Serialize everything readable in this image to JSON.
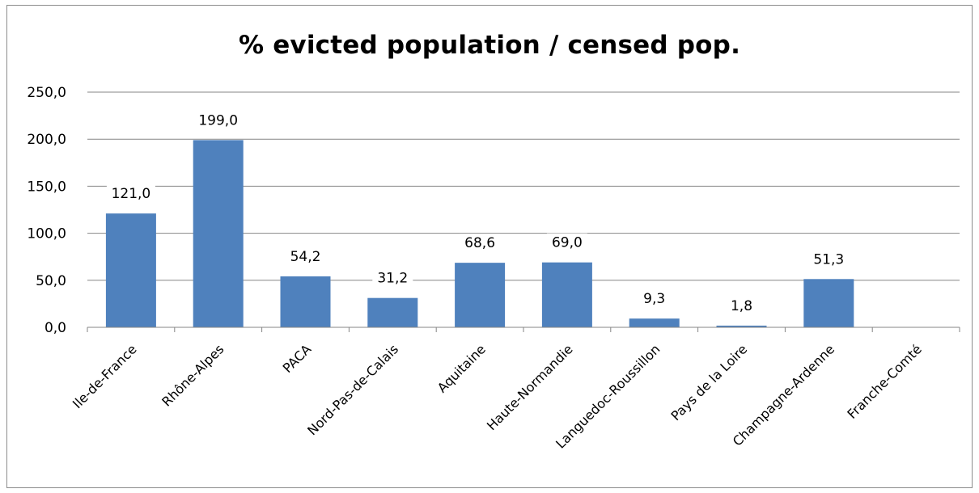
{
  "chart_data": {
    "type": "bar",
    "title": "% evicted population / censed pop.",
    "xlabel": "",
    "ylabel": "",
    "categories": [
      "Ile-de-France",
      "Rhône-Alpes",
      "PACA",
      "Nord-Pas-de-Calais",
      "Aquitaine",
      "Haute-Normandie",
      "Languedoc-Roussillon",
      "Pays de la Loire",
      "Champagne-Ardenne",
      "Franche-Comté"
    ],
    "values": [
      121.0,
      199.0,
      54.2,
      31.2,
      68.6,
      69.0,
      9.3,
      1.8,
      51.3,
      null
    ],
    "data_labels": [
      "121,0",
      "199,0",
      "54,2",
      "31,2",
      "68,6",
      "69,0",
      "9,3",
      "1,8",
      "51,3",
      ""
    ],
    "ylim": [
      0,
      250
    ],
    "yticks": [
      0,
      50,
      100,
      150,
      200,
      250
    ],
    "ytick_labels": [
      "0,0",
      "50,0",
      "100,0",
      "150,0",
      "200,0",
      "250,0"
    ],
    "grid": true,
    "legend": "none",
    "bar_color": "#4f81bd",
    "grid_color": "#868686"
  }
}
